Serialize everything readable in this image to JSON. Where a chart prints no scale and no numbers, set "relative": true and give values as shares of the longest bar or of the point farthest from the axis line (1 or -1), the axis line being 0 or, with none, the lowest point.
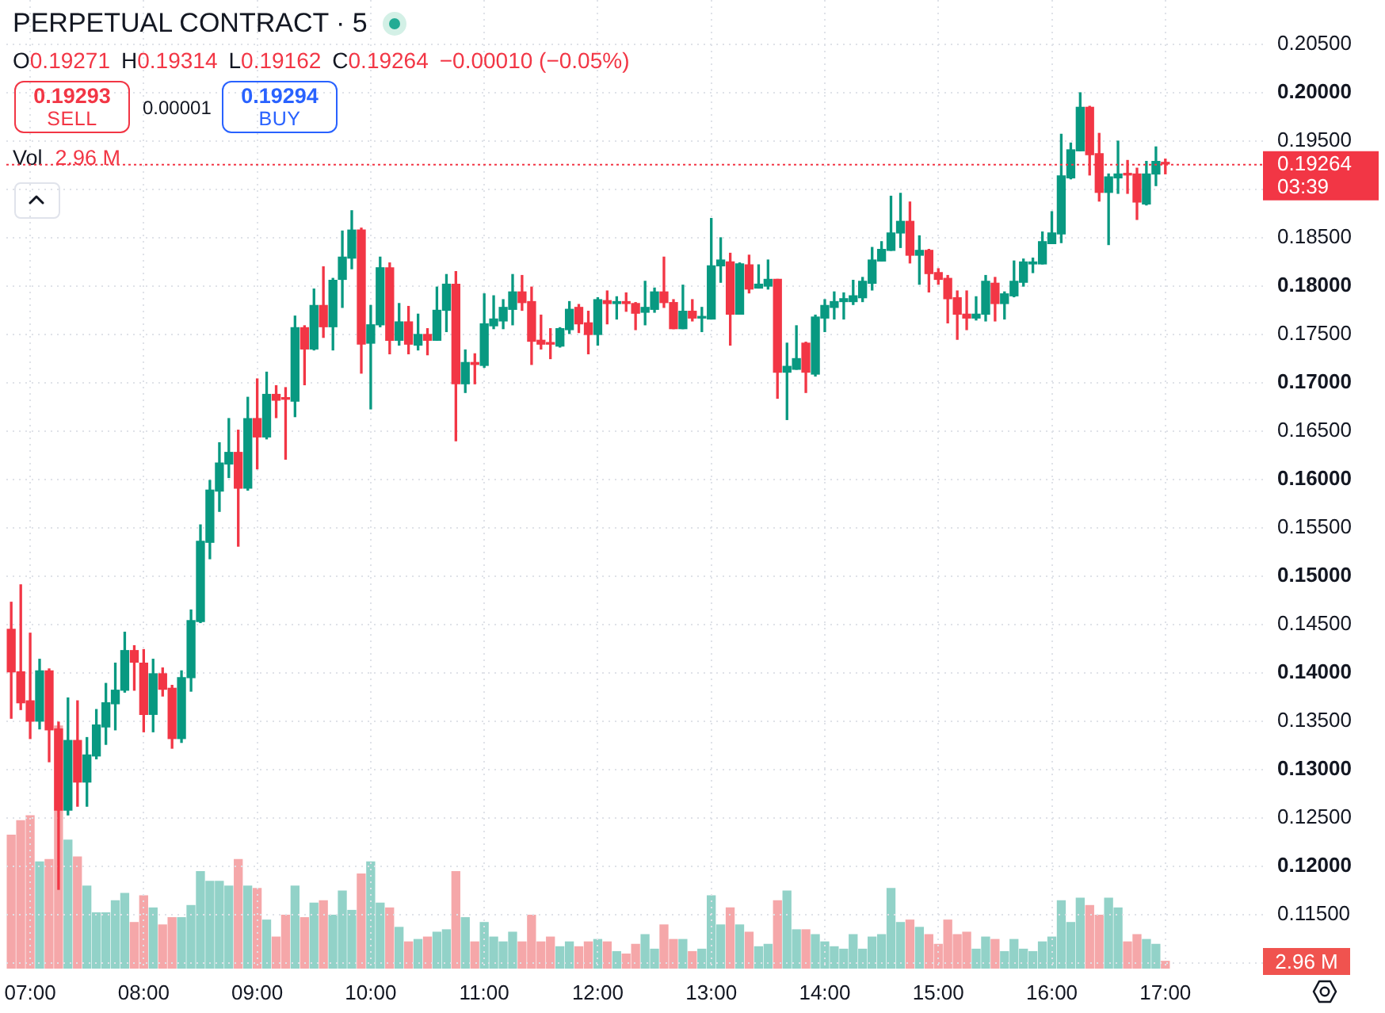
{
  "chart_data": [
    {
      "type": "candlestick",
      "title": "PERPETUAL CONTRACT · 5",
      "x": [
        6.833,
        6.917,
        7,
        7.083,
        7.167,
        7.25,
        7.333,
        7.417,
        7.5,
        7.583,
        7.667,
        7.75,
        7.833,
        7.917,
        8,
        8.083,
        8.167,
        8.25,
        8.333,
        8.417,
        8.5,
        8.583,
        8.667,
        8.75,
        8.833,
        8.917,
        9,
        9.083,
        9.167,
        9.25,
        9.333,
        9.417,
        9.5,
        9.583,
        9.667,
        9.75,
        9.833,
        9.917,
        10,
        10.083,
        10.167,
        10.25,
        10.333,
        10.417,
        10.5,
        10.583,
        10.667,
        10.75,
        10.833,
        10.917,
        11,
        11.083,
        11.167,
        11.25,
        11.333,
        11.417,
        11.5,
        11.583,
        11.667,
        11.75,
        11.833,
        11.917,
        12,
        12.083,
        12.167,
        12.25,
        12.333,
        12.417,
        12.5,
        12.583,
        12.667,
        12.75,
        12.833,
        12.917,
        13,
        13.083,
        13.167,
        13.25,
        13.333,
        13.417,
        13.5,
        13.583,
        13.667,
        13.75,
        13.833,
        13.917,
        14,
        14.083,
        14.167,
        14.25,
        14.333,
        14.417,
        14.5,
        14.583,
        14.667,
        14.75,
        14.833,
        14.917,
        15,
        15.083,
        15.167,
        15.25,
        15.333,
        15.417,
        15.5,
        15.583,
        15.667,
        15.75,
        15.833,
        15.917,
        16,
        16.083,
        16.167,
        16.25,
        16.333,
        16.417,
        16.5,
        16.583,
        16.667,
        16.75,
        16.833,
        16.917,
        17
      ],
      "ohlc": [
        [
          0.1445,
          0.1473,
          0.1353,
          0.1401
        ],
        [
          0.1401,
          0.1491,
          0.1362,
          0.1369
        ],
        [
          0.1371,
          0.1441,
          0.1332,
          0.135
        ],
        [
          0.135,
          0.1414,
          0.1342,
          0.1402
        ],
        [
          0.1402,
          0.1404,
          0.1308,
          0.1341
        ],
        [
          0.1342,
          0.1349,
          0.1176,
          0.1258
        ],
        [
          0.1258,
          0.1374,
          0.1253,
          0.133
        ],
        [
          0.133,
          0.1371,
          0.1262,
          0.1287
        ],
        [
          0.1287,
          0.1333,
          0.1262,
          0.1315
        ],
        [
          0.1314,
          0.1362,
          0.1311,
          0.1346
        ],
        [
          0.1344,
          0.1389,
          0.1326,
          0.1369
        ],
        [
          0.1368,
          0.141,
          0.1341,
          0.1382
        ],
        [
          0.1382,
          0.1442,
          0.138,
          0.1423
        ],
        [
          0.1423,
          0.1428,
          0.1382,
          0.1411
        ],
        [
          0.141,
          0.1424,
          0.1339,
          0.1357
        ],
        [
          0.1357,
          0.1414,
          0.1339,
          0.1399
        ],
        [
          0.1399,
          0.1405,
          0.1376,
          0.1383
        ],
        [
          0.1384,
          0.1387,
          0.1322,
          0.1332
        ],
        [
          0.1332,
          0.1402,
          0.1328,
          0.1395
        ],
        [
          0.1395,
          0.1465,
          0.1381,
          0.1454
        ],
        [
          0.1453,
          0.1553,
          0.1452,
          0.1536
        ],
        [
          0.1535,
          0.1599,
          0.1518,
          0.1589
        ],
        [
          0.1588,
          0.1638,
          0.1567,
          0.1617
        ],
        [
          0.1616,
          0.1663,
          0.1602,
          0.1628
        ],
        [
          0.1628,
          0.1651,
          0.1531,
          0.1591
        ],
        [
          0.1591,
          0.1685,
          0.1589,
          0.1663
        ],
        [
          0.1663,
          0.1704,
          0.1611,
          0.1644
        ],
        [
          0.1644,
          0.1711,
          0.1642,
          0.1688
        ],
        [
          0.1688,
          0.1697,
          0.1664,
          0.1682
        ],
        [
          0.1684,
          0.1695,
          0.1621,
          0.1683
        ],
        [
          0.1681,
          0.1769,
          0.1665,
          0.1757
        ],
        [
          0.1757,
          0.1759,
          0.1698,
          0.1735
        ],
        [
          0.1735,
          0.1797,
          0.1734,
          0.178
        ],
        [
          0.178,
          0.182,
          0.1747,
          0.1758
        ],
        [
          0.1758,
          0.1808,
          0.1734,
          0.1806
        ],
        [
          0.1807,
          0.1857,
          0.1778,
          0.183
        ],
        [
          0.1829,
          0.1878,
          0.1818,
          0.1858
        ],
        [
          0.1858,
          0.186,
          0.171,
          0.174
        ],
        [
          0.1741,
          0.178,
          0.1673,
          0.176
        ],
        [
          0.176,
          0.183,
          0.1758,
          0.1819
        ],
        [
          0.1819,
          0.1824,
          0.173,
          0.1744
        ],
        [
          0.1744,
          0.1782,
          0.1739,
          0.1763
        ],
        [
          0.1763,
          0.1779,
          0.173,
          0.174
        ],
        [
          0.1739,
          0.1771,
          0.1734,
          0.175
        ],
        [
          0.175,
          0.1756,
          0.1729,
          0.1744
        ],
        [
          0.1744,
          0.1799,
          0.1744,
          0.1775
        ],
        [
          0.1775,
          0.1812,
          0.1753,
          0.1802
        ],
        [
          0.1802,
          0.1815,
          0.164,
          0.1699
        ],
        [
          0.1699,
          0.1734,
          0.169,
          0.1721
        ],
        [
          0.1721,
          0.173,
          0.1699,
          0.1719
        ],
        [
          0.1718,
          0.1792,
          0.1716,
          0.1761
        ],
        [
          0.1759,
          0.179,
          0.1756,
          0.1766
        ],
        [
          0.1764,
          0.1786,
          0.1756,
          0.1778
        ],
        [
          0.1776,
          0.1812,
          0.176,
          0.1794
        ],
        [
          0.1794,
          0.1811,
          0.1775,
          0.1783
        ],
        [
          0.1784,
          0.1799,
          0.1719,
          0.1743
        ],
        [
          0.1744,
          0.177,
          0.1735,
          0.174
        ],
        [
          0.1741,
          0.1756,
          0.1725,
          0.174
        ],
        [
          0.1738,
          0.1757,
          0.1737,
          0.1756
        ],
        [
          0.1755,
          0.1784,
          0.1751,
          0.1776
        ],
        [
          0.1778,
          0.1781,
          0.1752,
          0.1761
        ],
        [
          0.1762,
          0.1774,
          0.173,
          0.175
        ],
        [
          0.175,
          0.1788,
          0.1739,
          0.1786
        ],
        [
          0.1785,
          0.1795,
          0.1761,
          0.1782
        ],
        [
          0.1782,
          0.1789,
          0.1766,
          0.1784
        ],
        [
          0.1784,
          0.1793,
          0.1774,
          0.1782
        ],
        [
          0.1782,
          0.1783,
          0.1755,
          0.1772
        ],
        [
          0.1773,
          0.1805,
          0.176,
          0.1778
        ],
        [
          0.1776,
          0.1798,
          0.1773,
          0.1794
        ],
        [
          0.1794,
          0.183,
          0.1778,
          0.1783
        ],
        [
          0.1783,
          0.1786,
          0.1756,
          0.1756
        ],
        [
          0.1756,
          0.1801,
          0.1756,
          0.1774
        ],
        [
          0.1774,
          0.1786,
          0.1764,
          0.1767
        ],
        [
          0.1767,
          0.1778,
          0.1753,
          0.1768
        ],
        [
          0.1766,
          0.187,
          0.1766,
          0.1821
        ],
        [
          0.1821,
          0.185,
          0.1804,
          0.1827
        ],
        [
          0.1825,
          0.1834,
          0.1739,
          0.1771
        ],
        [
          0.1771,
          0.1824,
          0.1771,
          0.1823
        ],
        [
          0.1822,
          0.1832,
          0.1793,
          0.1797
        ],
        [
          0.1798,
          0.1822,
          0.1798,
          0.1802
        ],
        [
          0.18,
          0.1827,
          0.1797,
          0.1807
        ],
        [
          0.1807,
          0.1807,
          0.1684,
          0.1711
        ],
        [
          0.1711,
          0.1741,
          0.1662,
          0.1717
        ],
        [
          0.1714,
          0.1759,
          0.1714,
          0.1725
        ],
        [
          0.1741,
          0.1742,
          0.169,
          0.1711
        ],
        [
          0.1709,
          0.177,
          0.1707,
          0.1768
        ],
        [
          0.1767,
          0.1786,
          0.1753,
          0.178
        ],
        [
          0.1778,
          0.1794,
          0.1766,
          0.1784
        ],
        [
          0.1784,
          0.1793,
          0.1766,
          0.1787
        ],
        [
          0.1784,
          0.1806,
          0.1781,
          0.179
        ],
        [
          0.1788,
          0.1809,
          0.1784,
          0.1805
        ],
        [
          0.1803,
          0.184,
          0.1796,
          0.1827
        ],
        [
          0.1826,
          0.1846,
          0.1826,
          0.1838
        ],
        [
          0.1837,
          0.1893,
          0.1837,
          0.1855
        ],
        [
          0.1855,
          0.1896,
          0.184,
          0.1867
        ],
        [
          0.1867,
          0.1887,
          0.1824,
          0.1832
        ],
        [
          0.1832,
          0.1852,
          0.1802,
          0.1837
        ],
        [
          0.1837,
          0.1838,
          0.1794,
          0.1813
        ],
        [
          0.1814,
          0.1818,
          0.1802,
          0.1807
        ],
        [
          0.1808,
          0.1811,
          0.1762,
          0.1787
        ],
        [
          0.1788,
          0.1795,
          0.1745,
          0.1771
        ],
        [
          0.1771,
          0.1795,
          0.1755,
          0.1767
        ],
        [
          0.1767,
          0.1789,
          0.1765,
          0.1771
        ],
        [
          0.1771,
          0.1811,
          0.1764,
          0.1805
        ],
        [
          0.1803,
          0.1809,
          0.1764,
          0.1782
        ],
        [
          0.1782,
          0.1794,
          0.1766,
          0.1792
        ],
        [
          0.179,
          0.1826,
          0.1789,
          0.1805
        ],
        [
          0.1804,
          0.1828,
          0.18,
          0.1825
        ],
        [
          0.1823,
          0.1829,
          0.1814,
          0.1825
        ],
        [
          0.1823,
          0.1856,
          0.1823,
          0.1846
        ],
        [
          0.1844,
          0.1877,
          0.1844,
          0.1855
        ],
        [
          0.1854,
          0.1957,
          0.1845,
          0.1914
        ],
        [
          0.1912,
          0.1948,
          0.1911,
          0.1941
        ],
        [
          0.194,
          0.2,
          0.194,
          0.1985
        ],
        [
          0.1985,
          0.1986,
          0.1915,
          0.1936
        ],
        [
          0.1937,
          0.1958,
          0.1888,
          0.1897
        ],
        [
          0.1897,
          0.1916,
          0.1843,
          0.1913
        ],
        [
          0.1912,
          0.195,
          0.1896,
          0.1916
        ],
        [
          0.1916,
          0.193,
          0.1896,
          0.1915
        ],
        [
          0.1916,
          0.1922,
          0.1869,
          0.1887
        ],
        [
          0.1885,
          0.1929,
          0.1884,
          0.1916
        ],
        [
          0.1916,
          0.1944,
          0.1904,
          0.1929
        ],
        [
          0.19271,
          0.19314,
          0.19162,
          0.19264
        ]
      ],
      "colors": [
        "#f23645",
        "#f23645",
        "#f23645",
        "#089981",
        "#f23645",
        "#f23645",
        "#089981",
        "#f23645",
        "#089981",
        "#089981",
        "#089981",
        "#089981",
        "#089981",
        "#f23645",
        "#f23645",
        "#089981",
        "#f23645",
        "#f23645",
        "#089981",
        "#089981",
        "#089981",
        "#089981",
        "#089981",
        "#089981",
        "#f23645",
        "#089981",
        "#f23645",
        "#089981",
        "#f23645",
        "#f23645",
        "#089981",
        "#f23645",
        "#089981",
        "#f23645",
        "#089981",
        "#089981",
        "#089981",
        "#f23645",
        "#089981",
        "#089981",
        "#f23645",
        "#089981",
        "#f23645",
        "#089981",
        "#f23645",
        "#089981",
        "#089981",
        "#f23645",
        "#089981",
        "#f23645",
        "#089981",
        "#089981",
        "#089981",
        "#089981",
        "#f23645",
        "#f23645",
        "#f23645",
        "#f23645",
        "#089981",
        "#089981",
        "#f23645",
        "#f23645",
        "#089981",
        "#f23645",
        "#089981",
        "#f23645",
        "#f23645",
        "#089981",
        "#089981",
        "#f23645",
        "#f23645",
        "#089981",
        "#f23645",
        "#089981",
        "#089981",
        "#089981",
        "#f23645",
        "#089981",
        "#f23645",
        "#089981",
        "#089981",
        "#f23645",
        "#089981",
        "#089981",
        "#f23645",
        "#089981",
        "#089981",
        "#089981",
        "#089981",
        "#089981",
        "#089981",
        "#089981",
        "#089981",
        "#089981",
        "#089981",
        "#f23645",
        "#089981",
        "#f23645",
        "#f23645",
        "#f23645",
        "#f23645",
        "#f23645",
        "#089981",
        "#089981",
        "#f23645",
        "#089981",
        "#089981",
        "#089981",
        "#089981",
        "#089981",
        "#089981",
        "#089981",
        "#089981",
        "#089981",
        "#f23645",
        "#f23645",
        "#089981",
        "#089981",
        "#f23645",
        "#f23645",
        "#089981",
        "#089981",
        "#f23645"
      ],
      "xlim": [
        6.79,
        17.86
      ],
      "xticks": [
        {
          "value": 7,
          "label": "07:00"
        },
        {
          "value": 8,
          "label": "08:00"
        },
        {
          "value": 9,
          "label": "09:00"
        },
        {
          "value": 10,
          "label": "10:00"
        },
        {
          "value": 11,
          "label": "11:00"
        },
        {
          "value": 12,
          "label": "12:00"
        },
        {
          "value": 13,
          "label": "13:00"
        },
        {
          "value": 14,
          "label": "14:00"
        },
        {
          "value": 15,
          "label": "15:00"
        },
        {
          "value": 16,
          "label": "16:00"
        },
        {
          "value": 17,
          "label": "17:00"
        }
      ],
      "ylim": [
        0.1094,
        0.2096
      ],
      "yticks": [
        {
          "value": 0.11,
          "label": null
        },
        {
          "value": 0.115,
          "label": "0.11500"
        },
        {
          "value": 0.12,
          "label": "0.12000"
        },
        {
          "value": 0.125,
          "label": "0.12500"
        },
        {
          "value": 0.13,
          "label": "0.13000"
        },
        {
          "value": 0.135,
          "label": "0.13500"
        },
        {
          "value": 0.14,
          "label": "0.14000"
        },
        {
          "value": 0.145,
          "label": "0.14500"
        },
        {
          "value": 0.15,
          "label": "0.15000"
        },
        {
          "value": 0.155,
          "label": "0.15500"
        },
        {
          "value": 0.16,
          "label": "0.16000"
        },
        {
          "value": 0.165,
          "label": "0.16500"
        },
        {
          "value": 0.17,
          "label": "0.17000"
        },
        {
          "value": 0.175,
          "label": "0.17500"
        },
        {
          "value": 0.18,
          "label": "0.18000"
        },
        {
          "value": 0.185,
          "label": "0.18500"
        },
        {
          "value": 0.19,
          "label": null
        },
        {
          "value": 0.195,
          "label": "0.19500"
        },
        {
          "value": 0.2,
          "label": "0.20000"
        },
        {
          "value": 0.205,
          "label": "0.20500"
        }
      ],
      "grid": true,
      "ref_lines": [
        {
          "axis": "y",
          "value": 0.19264,
          "label": "0.19264",
          "color": "#f23645",
          "line_style": "dotted"
        }
      ],
      "annotations": [
        "O0.19271",
        "H0.19314",
        "L0.19162",
        "C0.19264",
        "−0.00010 (−0.05%)",
        "0.19293",
        "SELL",
        "0.00001",
        "0.19294",
        "BUY",
        "03:39"
      ]
    },
    {
      "type": "bar",
      "title": "Vol",
      "relative": true,
      "categories": [
        null,
        null,
        null,
        null,
        null,
        null,
        null,
        null,
        null,
        null,
        null,
        null,
        null,
        null,
        null,
        null,
        null,
        null,
        null,
        null,
        null,
        null,
        null,
        null,
        null,
        null,
        null,
        null,
        null,
        null,
        null,
        null,
        null,
        null,
        null,
        null,
        null,
        null,
        null,
        null,
        null,
        null,
        null,
        null,
        null,
        null,
        null,
        null,
        null,
        null,
        null,
        null,
        null,
        null,
        null,
        null,
        null,
        null,
        null,
        null,
        null,
        null,
        null,
        null,
        null,
        null,
        null,
        null,
        null,
        null,
        null,
        null,
        null,
        null,
        null,
        null,
        null,
        null,
        null,
        null,
        null,
        null,
        null,
        null,
        null,
        null,
        null,
        null,
        null,
        null,
        null,
        null,
        null,
        null,
        null,
        null,
        null,
        null,
        null,
        null,
        null,
        null,
        null,
        null,
        null,
        null,
        null,
        null,
        null,
        null,
        null,
        null,
        null,
        null,
        null,
        null,
        null,
        null,
        null,
        null,
        null,
        null,
        null
      ],
      "values": [
        0.55,
        0.61,
        0.63,
        0.44,
        0.45,
        1,
        0.53,
        0.46,
        0.34,
        0.23,
        0.23,
        0.28,
        0.31,
        0.19,
        0.3,
        0.25,
        0.18,
        0.21,
        0.21,
        0.26,
        0.4,
        0.36,
        0.36,
        0.34,
        0.45,
        0.34,
        0.33,
        0.2,
        0.13,
        0.22,
        0.34,
        0.21,
        0.27,
        0.28,
        0.22,
        0.32,
        0.24,
        0.39,
        0.44,
        0.27,
        0.25,
        0.17,
        0.11,
        0.12,
        0.13,
        0.15,
        0.16,
        0.4,
        0.21,
        0.11,
        0.19,
        0.13,
        0.11,
        0.15,
        0.11,
        0.22,
        0.11,
        0.13,
        0.09,
        0.11,
        0.09,
        0.11,
        0.12,
        0.11,
        0.07,
        0.06,
        0.1,
        0.14,
        0.08,
        0.18,
        0.12,
        0.12,
        0.07,
        0.08,
        0.3,
        0.18,
        0.25,
        0.18,
        0.15,
        0.09,
        0.1,
        0.28,
        0.32,
        0.16,
        0.16,
        0.14,
        0.11,
        0.09,
        0.08,
        0.14,
        0.08,
        0.13,
        0.14,
        0.33,
        0.19,
        0.2,
        0.17,
        0.14,
        0.1,
        0.2,
        0.14,
        0.15,
        0.08,
        0.13,
        0.12,
        0.07,
        0.12,
        0.08,
        0.07,
        0.11,
        0.13,
        0.28,
        0.19,
        0.29,
        0.26,
        0.22,
        0.29,
        0.25,
        0.11,
        0.14,
        0.12,
        0.1,
        0.03
      ],
      "colors": [
        "#f5a7a9",
        "#f5a7a9",
        "#f5a7a9",
        "#92d2c8",
        "#f5a7a9",
        "#f5a7a9",
        "#92d2c8",
        "#f5a7a9",
        "#92d2c8",
        "#92d2c8",
        "#92d2c8",
        "#92d2c8",
        "#92d2c8",
        "#f5a7a9",
        "#f5a7a9",
        "#92d2c8",
        "#f5a7a9",
        "#f5a7a9",
        "#92d2c8",
        "#92d2c8",
        "#92d2c8",
        "#92d2c8",
        "#92d2c8",
        "#92d2c8",
        "#f5a7a9",
        "#92d2c8",
        "#f5a7a9",
        "#92d2c8",
        "#f5a7a9",
        "#f5a7a9",
        "#92d2c8",
        "#f5a7a9",
        "#92d2c8",
        "#f5a7a9",
        "#92d2c8",
        "#92d2c8",
        "#92d2c8",
        "#f5a7a9",
        "#92d2c8",
        "#92d2c8",
        "#f5a7a9",
        "#92d2c8",
        "#f5a7a9",
        "#92d2c8",
        "#f5a7a9",
        "#92d2c8",
        "#92d2c8",
        "#f5a7a9",
        "#92d2c8",
        "#f5a7a9",
        "#92d2c8",
        "#92d2c8",
        "#92d2c8",
        "#92d2c8",
        "#f5a7a9",
        "#f5a7a9",
        "#f5a7a9",
        "#f5a7a9",
        "#92d2c8",
        "#92d2c8",
        "#f5a7a9",
        "#f5a7a9",
        "#92d2c8",
        "#f5a7a9",
        "#92d2c8",
        "#f5a7a9",
        "#f5a7a9",
        "#92d2c8",
        "#92d2c8",
        "#f5a7a9",
        "#f5a7a9",
        "#92d2c8",
        "#f5a7a9",
        "#92d2c8",
        "#92d2c8",
        "#92d2c8",
        "#f5a7a9",
        "#92d2c8",
        "#f5a7a9",
        "#92d2c8",
        "#92d2c8",
        "#f5a7a9",
        "#92d2c8",
        "#92d2c8",
        "#f5a7a9",
        "#92d2c8",
        "#92d2c8",
        "#92d2c8",
        "#92d2c8",
        "#92d2c8",
        "#92d2c8",
        "#92d2c8",
        "#92d2c8",
        "#92d2c8",
        "#92d2c8",
        "#f5a7a9",
        "#92d2c8",
        "#f5a7a9",
        "#f5a7a9",
        "#f5a7a9",
        "#f5a7a9",
        "#f5a7a9",
        "#92d2c8",
        "#92d2c8",
        "#f5a7a9",
        "#92d2c8",
        "#92d2c8",
        "#92d2c8",
        "#92d2c8",
        "#92d2c8",
        "#92d2c8",
        "#92d2c8",
        "#92d2c8",
        "#92d2c8",
        "#f5a7a9",
        "#f5a7a9",
        "#92d2c8",
        "#92d2c8",
        "#f5a7a9",
        "#f5a7a9",
        "#92d2c8",
        "#92d2c8",
        "#f5a7a9"
      ],
      "tick_labels": false,
      "annotations": [
        "2.96 M",
        "2.96 M"
      ]
    }
  ]
}
